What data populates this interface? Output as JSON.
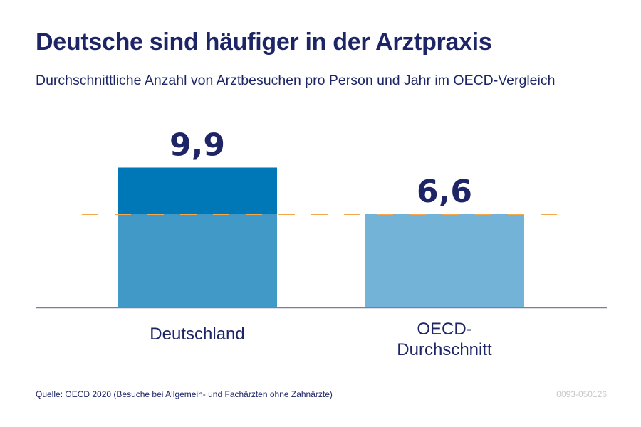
{
  "title": "Deutsche sind häufiger in der Arztpraxis",
  "subtitle": "Durchschnittliche Anzahl von Arztbesuchen pro Person und Jahr im OECD-Vergleich",
  "source": "Quelle: OECD 2020 (Besuche bei Allgemein- und Fachärzten ohne Zahnärzte)",
  "code": "0093-050126",
  "colors": {
    "text": "#1d2566",
    "bar_de_top": "#0077b6",
    "bar_de_base": "#4199c8",
    "bar_oecd": "#74b3d8",
    "reference_line": "#f5a94a",
    "axis": "#7a7ca8"
  },
  "chart_data": {
    "type": "bar",
    "title": "Deutsche sind häufiger in der Arztpraxis",
    "subtitle": "Durchschnittliche Anzahl von Arztbesuchen pro Person und Jahr im OECD-Vergleich",
    "xlabel": "",
    "ylabel": "",
    "categories": [
      "Deutschland",
      "OECD-Durchschnitt"
    ],
    "category_lines": [
      [
        "Deutschland"
      ],
      [
        "OECD-",
        "Durchschnitt"
      ]
    ],
    "values": [
      9.9,
      6.6
    ],
    "value_labels": [
      "9,9",
      "6,6"
    ],
    "reference_line": {
      "value": 6.6,
      "style": "dashed",
      "label": "OECD-Durchschnitt"
    },
    "ylim": [
      0,
      9.9
    ],
    "grid": false,
    "legend": "none"
  }
}
